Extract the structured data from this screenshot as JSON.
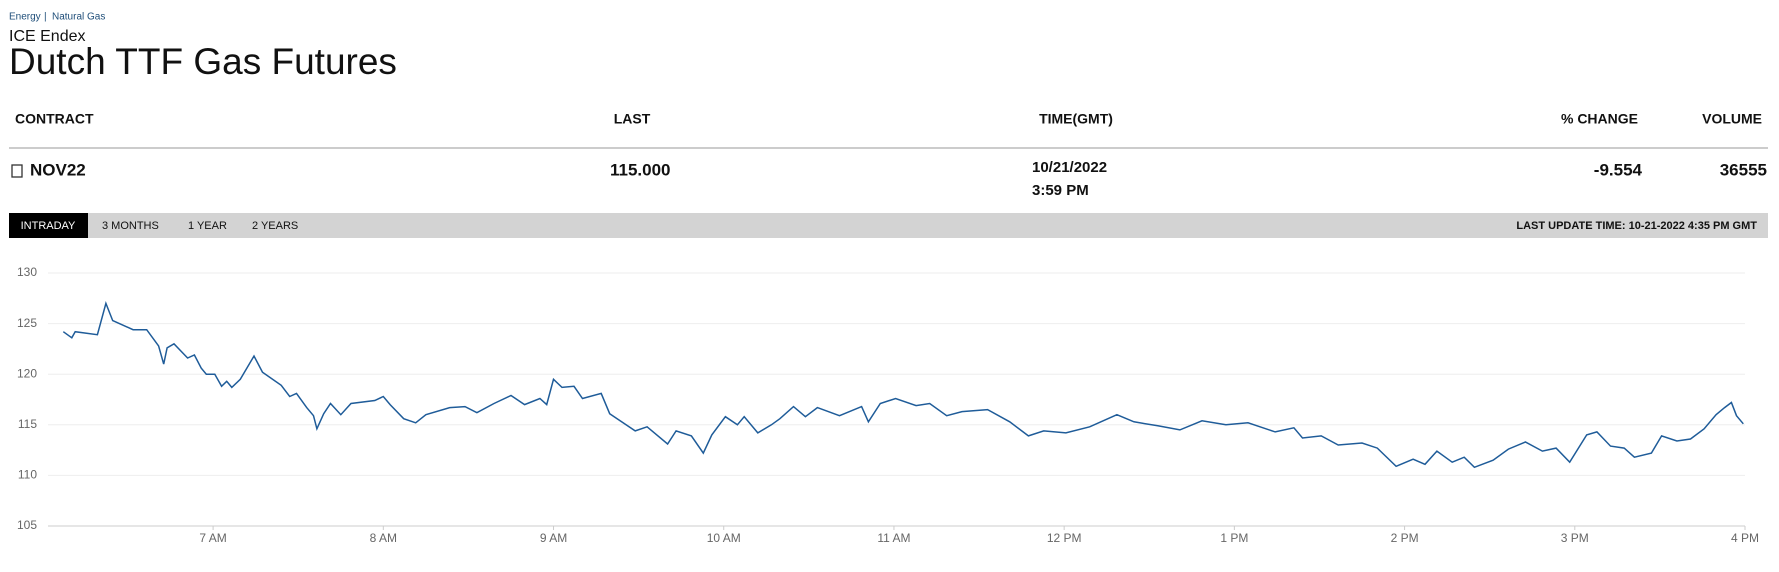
{
  "breadcrumb": [
    "Energy",
    "Natural Gas"
  ],
  "exchange": "ICE Endex",
  "title": "Dutch TTF Gas Futures",
  "table": {
    "headers": [
      "CONTRACT",
      "LAST",
      "TIME(GMT)",
      "% CHANGE",
      "VOLUME"
    ],
    "rows": [
      {
        "contract": "NOV22",
        "last": "115.000",
        "time": [
          "10/21/2022",
          "3:59 PM"
        ],
        "change": "-9.554",
        "volume": "36555"
      }
    ]
  },
  "tabs": [
    "INTRADAY",
    "3 MONTHS",
    "1 YEAR",
    "2 YEARS"
  ],
  "last_update": "LAST UPDATE TIME: 10-21-2022 4:35 PM GMT",
  "chart_data": {
    "type": "line",
    "color": "#1f5c99",
    "grid": true,
    "xlim": [
      6.03,
      16
    ],
    "ylim": [
      105,
      130
    ],
    "yticks": [
      105,
      110,
      115,
      120,
      125,
      130
    ],
    "xticks": [
      {
        "value": 7,
        "label": "7 AM"
      },
      {
        "value": 8,
        "label": "8 AM"
      },
      {
        "value": 9,
        "label": "9 AM"
      },
      {
        "value": 10,
        "label": "10 AM"
      },
      {
        "value": 11,
        "label": "11 AM"
      },
      {
        "value": 12,
        "label": "12 PM"
      },
      {
        "value": 13,
        "label": "1 PM"
      },
      {
        "value": 14,
        "label": "2 PM"
      },
      {
        "value": 15,
        "label": "3 PM"
      },
      {
        "value": 16,
        "label": "4 PM"
      }
    ],
    "x": [
      6.12,
      6.17,
      6.19,
      6.32,
      6.37,
      6.41,
      6.53,
      6.61,
      6.68,
      6.71,
      6.73,
      6.77,
      6.85,
      6.89,
      6.93,
      6.96,
      7.01,
      7.05,
      7.08,
      7.11,
      7.16,
      7.24,
      7.29,
      7.4,
      7.45,
      7.49,
      7.55,
      7.59,
      7.61,
      7.65,
      7.69,
      7.75,
      7.81,
      7.95,
      8.0,
      8.04,
      8.12,
      8.19,
      8.25,
      8.39,
      8.48,
      8.55,
      8.65,
      8.75,
      8.83,
      8.92,
      8.96,
      9.0,
      9.05,
      9.12,
      9.17,
      9.28,
      9.33,
      9.4,
      9.48,
      9.55,
      9.67,
      9.72,
      9.81,
      9.88,
      9.93,
      10.01,
      10.08,
      10.12,
      10.2,
      10.28,
      10.33,
      10.41,
      10.48,
      10.55,
      10.68,
      10.81,
      10.85,
      10.92,
      11.01,
      11.13,
      11.21,
      11.31,
      11.4,
      11.55,
      11.68,
      11.79,
      11.88,
      12.01,
      12.15,
      12.31,
      12.41,
      12.55,
      12.68,
      12.81,
      12.95,
      13.08,
      13.24,
      13.35,
      13.4,
      13.51,
      13.61,
      13.75,
      13.84,
      13.95,
      14.05,
      14.12,
      14.19,
      14.28,
      14.35,
      14.41,
      14.52,
      14.61,
      14.71,
      14.81,
      14.89,
      14.97,
      15.07,
      15.13,
      15.21,
      15.29,
      15.35,
      15.45,
      15.51,
      15.6,
      15.68,
      15.76,
      15.83,
      15.88,
      15.92,
      15.95,
      15.99
    ],
    "values": [
      124.2,
      123.6,
      124.2,
      123.9,
      127.0,
      125.3,
      124.4,
      124.4,
      122.8,
      121.0,
      122.6,
      123.0,
      121.6,
      121.9,
      120.6,
      120.0,
      120.0,
      118.8,
      119.3,
      118.7,
      119.5,
      121.8,
      120.2,
      118.9,
      117.8,
      118.1,
      116.7,
      115.9,
      114.6,
      116.1,
      117.1,
      116.0,
      117.1,
      117.4,
      117.8,
      117.0,
      115.6,
      115.2,
      116.0,
      116.7,
      116.8,
      116.2,
      117.1,
      117.9,
      117.0,
      117.6,
      117.0,
      119.5,
      118.7,
      118.8,
      117.6,
      118.1,
      116.1,
      115.3,
      114.4,
      114.8,
      113.1,
      114.4,
      113.9,
      112.2,
      114.0,
      115.8,
      115.0,
      115.8,
      114.2,
      115.0,
      115.6,
      116.8,
      115.8,
      116.7,
      115.9,
      116.8,
      115.3,
      117.1,
      117.6,
      116.9,
      117.1,
      115.9,
      116.3,
      116.5,
      115.3,
      113.9,
      114.4,
      114.2,
      114.8,
      116.0,
      115.3,
      114.9,
      114.5,
      115.4,
      115.0,
      115.2,
      114.3,
      114.7,
      113.7,
      113.9,
      113.0,
      113.2,
      112.7,
      110.9,
      111.6,
      111.1,
      112.4,
      111.3,
      111.8,
      110.8,
      111.5,
      112.6,
      113.3,
      112.4,
      112.7,
      111.3,
      114.0,
      114.3,
      112.9,
      112.7,
      111.8,
      112.2,
      113.9,
      113.4,
      113.6,
      114.6,
      116.0,
      116.7,
      117.2,
      115.9,
      115.1
    ]
  }
}
